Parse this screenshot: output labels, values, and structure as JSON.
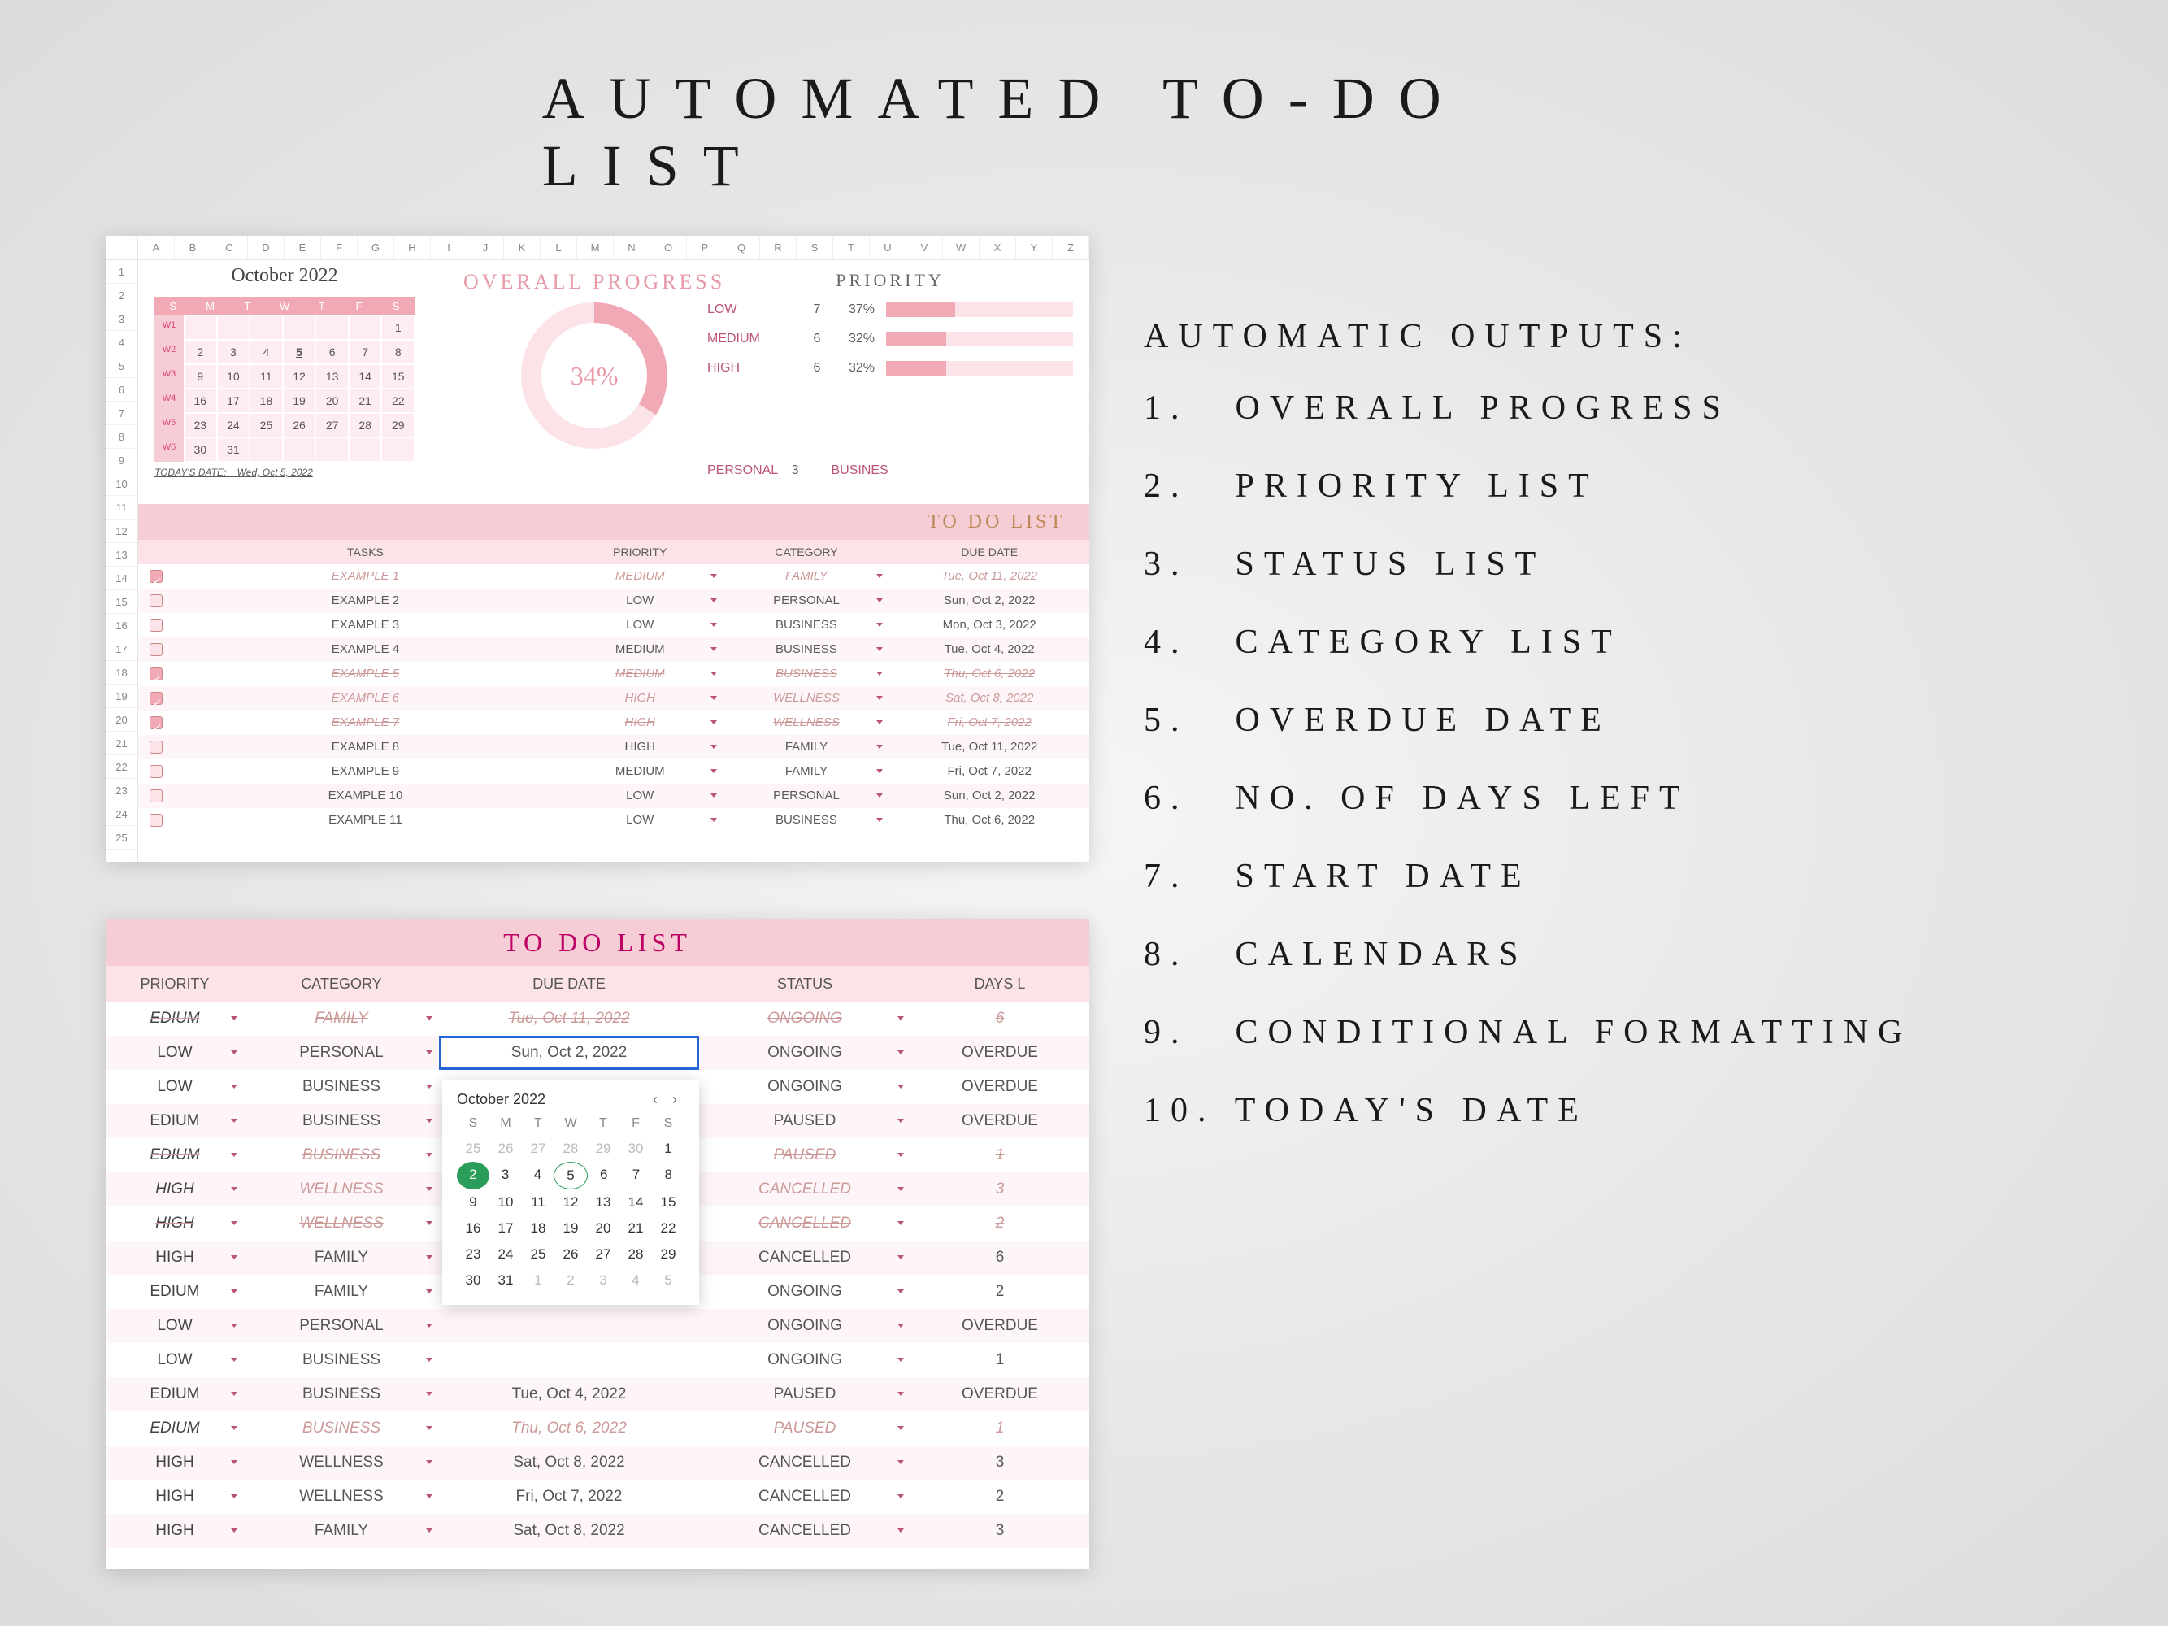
{
  "title": "AUTOMATED TO-DO LIST",
  "features": {
    "heading": "AUTOMATIC OUTPUTS:",
    "items": [
      "OVERALL PROGRESS",
      "PRIORITY LIST",
      "STATUS LIST",
      "CATEGORY LIST",
      "OVERDUE DATE",
      "NO. OF DAYS LEFT",
      "START DATE",
      "CALENDARS",
      "CONDITIONAL FORMATTING",
      "TODAY'S DATE"
    ]
  },
  "colors": {
    "accent": "#f2a9b6",
    "accent_light": "#fbe3e8",
    "accent_medium": "#f7cdd5",
    "row_alt": "#fdf5f7",
    "select_blue": "#2566d4",
    "dp_green": "#2a9d5a",
    "text": "#555555"
  },
  "panel1": {
    "columns": [
      "A",
      "B",
      "C",
      "D",
      "E",
      "F",
      "G",
      "H",
      "I",
      "J",
      "K",
      "L",
      "M",
      "N",
      "O",
      "P",
      "Q",
      "R",
      "S",
      "T",
      "U",
      "V",
      "W",
      "X",
      "Y",
      "Z"
    ],
    "rows": 25,
    "calendar": {
      "title": "October 2022",
      "dow": [
        "S",
        "M",
        "T",
        "W",
        "T",
        "F",
        "S"
      ],
      "weeks": [
        {
          "wk": "W1",
          "days": [
            "",
            "",
            "",
            "",
            "",
            "",
            "1"
          ]
        },
        {
          "wk": "W2",
          "days": [
            "2",
            "3",
            "4",
            "5",
            "6",
            "7",
            "8"
          ],
          "today_idx": 3
        },
        {
          "wk": "W3",
          "days": [
            "9",
            "10",
            "11",
            "12",
            "13",
            "14",
            "15"
          ]
        },
        {
          "wk": "W4",
          "days": [
            "16",
            "17",
            "18",
            "19",
            "20",
            "21",
            "22"
          ]
        },
        {
          "wk": "W5",
          "days": [
            "23",
            "24",
            "25",
            "26",
            "27",
            "28",
            "29"
          ]
        },
        {
          "wk": "W6",
          "days": [
            "30",
            "31",
            "",
            "",
            "",
            "",
            ""
          ]
        }
      ],
      "today_label": "TODAY'S DATE:",
      "today_value": "Wed, Oct  5, 2022"
    },
    "overall": {
      "title": "OVERALL PROGRESS",
      "pct": 34,
      "pct_label": "34%"
    },
    "priority": {
      "title": "PRIORITY",
      "rows": [
        {
          "label": "LOW",
          "count": 7,
          "pct": "37%",
          "fill": 37
        },
        {
          "label": "MEDIUM",
          "count": 6,
          "pct": "32%",
          "fill": 32
        },
        {
          "label": "HIGH",
          "count": 6,
          "pct": "32%",
          "fill": 32
        }
      ]
    },
    "category_bar": [
      {
        "label": "PERSONAL",
        "count": 3
      },
      {
        "label": "BUSINES",
        "count": ""
      }
    ],
    "todo_title": "TO DO LIST",
    "task_headers": {
      "tasks": "TASKS",
      "priority": "PRIORITY",
      "category": "CATEGORY",
      "due": "DUE DATE"
    },
    "tasks": [
      {
        "done": true,
        "task": "EXAMPLE 1",
        "priority": "MEDIUM",
        "category": "FAMILY",
        "due": "Tue, Oct 11, 2022",
        "struck": true
      },
      {
        "done": false,
        "task": "EXAMPLE 2",
        "priority": "LOW",
        "category": "PERSONAL",
        "due": "Sun, Oct  2, 2022"
      },
      {
        "done": false,
        "task": "EXAMPLE 3",
        "priority": "LOW",
        "category": "BUSINESS",
        "due": "Mon, Oct  3, 2022"
      },
      {
        "done": false,
        "task": "EXAMPLE 4",
        "priority": "MEDIUM",
        "category": "BUSINESS",
        "due": "Tue, Oct  4, 2022"
      },
      {
        "done": true,
        "task": "EXAMPLE 5",
        "priority": "MEDIUM",
        "category": "BUSINESS",
        "due": "Thu, Oct  6, 2022",
        "struck": true
      },
      {
        "done": true,
        "task": "EXAMPLE 6",
        "priority": "HIGH",
        "category": "WELLNESS",
        "due": "Sat, Oct  8, 2022",
        "struck": true
      },
      {
        "done": true,
        "task": "EXAMPLE 7",
        "priority": "HIGH",
        "category": "WELLNESS",
        "due": "Fri, Oct  7, 2022",
        "struck": true
      },
      {
        "done": false,
        "task": "EXAMPLE 8",
        "priority": "HIGH",
        "category": "FAMILY",
        "due": "Tue, Oct  11, 2022"
      },
      {
        "done": false,
        "task": "EXAMPLE 9",
        "priority": "MEDIUM",
        "category": "FAMILY",
        "due": "Fri, Oct  7, 2022"
      },
      {
        "done": false,
        "task": "EXAMPLE 10",
        "priority": "LOW",
        "category": "PERSONAL",
        "due": "Sun, Oct  2, 2022"
      },
      {
        "done": false,
        "task": "EXAMPLE 11",
        "priority": "LOW",
        "category": "BUSINESS",
        "due": "Thu, Oct  6, 2022"
      }
    ]
  },
  "panel2": {
    "title": "TO DO LIST",
    "headers": {
      "priority": "PRIORITY",
      "category": "CATEGORY",
      "due": "DUE DATE",
      "status": "STATUS",
      "days": "DAYS L"
    },
    "rows": [
      {
        "priority": "EDIUM",
        "category": "FAMILY",
        "due": "Tue, Oct  11, 2022",
        "status": "ONGOING",
        "days": "6",
        "struck": true,
        "selected": false
      },
      {
        "priority": "LOW",
        "category": "PERSONAL",
        "due": "Sun, Oct  2, 2022",
        "status": "ONGOING",
        "days": "OVERDUE",
        "selected": true
      },
      {
        "priority": "LOW",
        "category": "BUSINESS",
        "due": "",
        "status": "ONGOING",
        "days": "OVERDUE"
      },
      {
        "priority": "EDIUM",
        "category": "BUSINESS",
        "due": "",
        "status": "PAUSED",
        "days": "OVERDUE"
      },
      {
        "priority": "EDIUM",
        "category": "BUSINESS",
        "due": "",
        "status": "PAUSED",
        "days": "1",
        "struck": true
      },
      {
        "priority": "HIGH",
        "category": "WELLNESS",
        "due": "",
        "status": "CANCELLED",
        "days": "3",
        "struck": true
      },
      {
        "priority": "HIGH",
        "category": "WELLNESS",
        "due": "",
        "status": "CANCELLED",
        "days": "2",
        "struck": true
      },
      {
        "priority": "HIGH",
        "category": "FAMILY",
        "due": "",
        "status": "CANCELLED",
        "days": "6"
      },
      {
        "priority": "EDIUM",
        "category": "FAMILY",
        "due": "",
        "status": "ONGOING",
        "days": "2"
      },
      {
        "priority": "LOW",
        "category": "PERSONAL",
        "due": "",
        "status": "ONGOING",
        "days": "OVERDUE"
      },
      {
        "priority": "LOW",
        "category": "BUSINESS",
        "due": "",
        "status": "ONGOING",
        "days": "1"
      },
      {
        "priority": "EDIUM",
        "category": "BUSINESS",
        "due": "Tue, Oct  4, 2022",
        "status": "PAUSED",
        "days": "OVERDUE"
      },
      {
        "priority": "EDIUM",
        "category": "BUSINESS",
        "due": "Thu, Oct  6, 2022",
        "status": "PAUSED",
        "days": "1",
        "struck": true
      },
      {
        "priority": "HIGH",
        "category": "WELLNESS",
        "due": "Sat, Oct  8, 2022",
        "status": "CANCELLED",
        "days": "3"
      },
      {
        "priority": "HIGH",
        "category": "WELLNESS",
        "due": "Fri, Oct  7, 2022",
        "status": "CANCELLED",
        "days": "2"
      },
      {
        "priority": "HIGH",
        "category": "FAMILY",
        "due": "Sat, Oct  8, 2022",
        "status": "CANCELLED",
        "days": "3"
      }
    ],
    "datepicker": {
      "month": "October 2022",
      "dow": [
        "S",
        "M",
        "T",
        "W",
        "T",
        "F",
        "S"
      ],
      "weeks": [
        {
          "days": [
            "25",
            "26",
            "27",
            "28",
            "29",
            "30",
            "1"
          ],
          "other": [
            0,
            1,
            2,
            3,
            4,
            5
          ]
        },
        {
          "days": [
            "2",
            "3",
            "4",
            "5",
            "6",
            "7",
            "8"
          ],
          "sel": 0,
          "today": 3
        },
        {
          "days": [
            "9",
            "10",
            "11",
            "12",
            "13",
            "14",
            "15"
          ]
        },
        {
          "days": [
            "16",
            "17",
            "18",
            "19",
            "20",
            "21",
            "22"
          ]
        },
        {
          "days": [
            "23",
            "24",
            "25",
            "26",
            "27",
            "28",
            "29"
          ]
        },
        {
          "days": [
            "30",
            "31",
            "1",
            "2",
            "3",
            "4",
            "5"
          ],
          "other": [
            2,
            3,
            4,
            5,
            6
          ]
        }
      ]
    }
  }
}
